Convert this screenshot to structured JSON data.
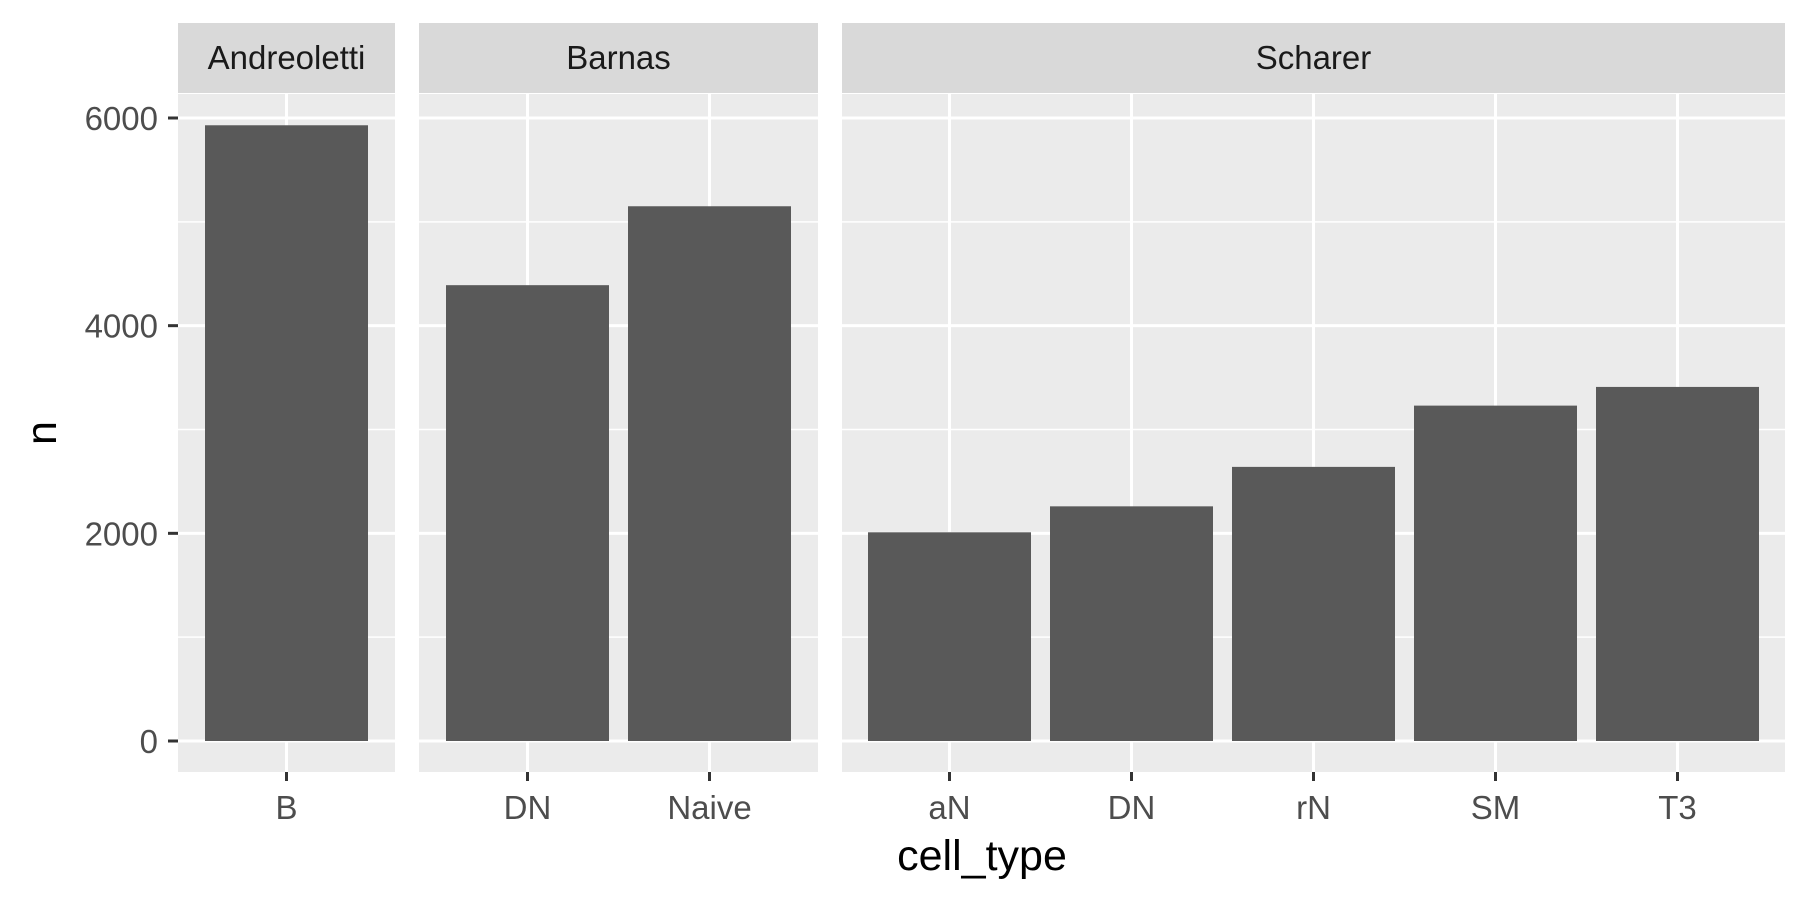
{
  "chart_data": {
    "type": "bar",
    "xlabel": "cell_type",
    "ylabel": "n",
    "ylim": [
      0,
      6500
    ],
    "y_ticks": [
      0,
      2000,
      4000,
      6000
    ],
    "grid": true,
    "facets": [
      {
        "name": "Andreoletti",
        "categories": [
          "B"
        ],
        "values": [
          5930
        ]
      },
      {
        "name": "Barnas",
        "categories": [
          "DN",
          "Naive"
        ],
        "values": [
          4390,
          5150
        ]
      },
      {
        "name": "Scharer",
        "categories": [
          "aN",
          "DN",
          "rN",
          "SM",
          "T3"
        ],
        "values": [
          2010,
          2260,
          2640,
          3230,
          3410
        ]
      }
    ]
  },
  "colors": {
    "panel_background": "#ebebeb",
    "strip_background": "#d9d9d9",
    "grid": "#ffffff",
    "bar": "#595959",
    "tick": "#333333"
  }
}
